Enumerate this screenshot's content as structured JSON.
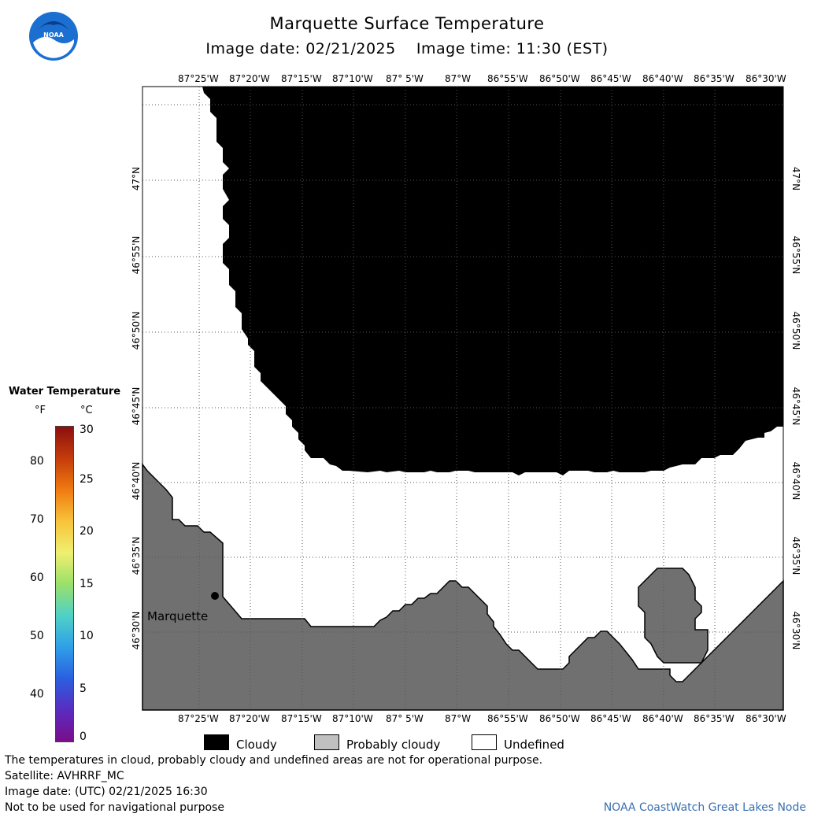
{
  "header": {
    "title": "Marquette Surface Temperature",
    "subtitle": "Image date: 02/21/2025    Image time: 11:30 (EST)"
  },
  "map": {
    "lon_labels": [
      "87°25'W",
      "87°20'W",
      "87°15'W",
      "87°10'W",
      "87° 5'W",
      "87°W",
      "86°55'W",
      "86°50'W",
      "86°45'W",
      "86°40'W",
      "86°35'W",
      "86°30'W"
    ],
    "lat_labels": [
      "47°N",
      "46°55'N",
      "46°50'N",
      "46°45'N",
      "46°40'N",
      "46°35'N",
      "46°30'N"
    ],
    "city": "Marquette",
    "colors": {
      "cloud": "#000000",
      "land": "#707070",
      "water": "#ffffff",
      "grid": "#555555"
    }
  },
  "colorbar": {
    "title": "Water Temperature",
    "unit_f": "°F",
    "unit_c": "°C",
    "f_ticks": [
      "80",
      "70",
      "60",
      "50",
      "40"
    ],
    "c_ticks": [
      "30",
      "25",
      "20",
      "15",
      "10",
      "5",
      "0"
    ],
    "gradient_colors": [
      "#8a0f0f",
      "#c43c0a",
      "#f07a10",
      "#f7c33a",
      "#f0ef70",
      "#9be06a",
      "#4fd1c7",
      "#2fa0e8",
      "#2a5fe0",
      "#5a2cc0",
      "#7a0d8a"
    ]
  },
  "legend": {
    "items": [
      {
        "label": "Cloudy",
        "color": "#000000"
      },
      {
        "label": "Probably cloudy",
        "color": "#c0c0c0"
      },
      {
        "label": "Undefined",
        "color": "#ffffff"
      }
    ]
  },
  "footer": {
    "disclaimer": "The temperatures in cloud, probably cloudy and undefined areas are not for operational purpose.",
    "satellite": "Satellite: AVHRRF_MC",
    "utc_date": "Image date: (UTC) 02/21/2025  16:30",
    "navigation": "Not to be used for navigational purpose",
    "credit": "NOAA CoastWatch Great Lakes Node"
  }
}
